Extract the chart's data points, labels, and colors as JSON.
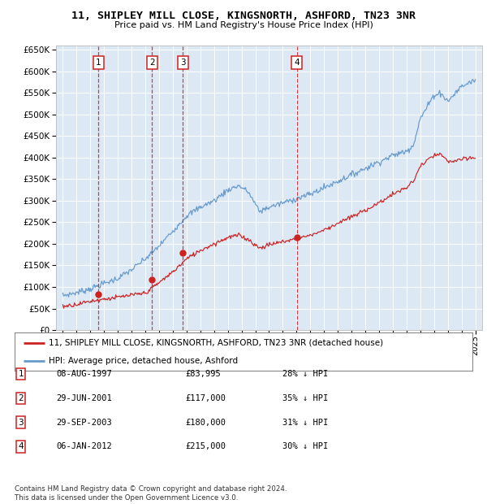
{
  "title": "11, SHIPLEY MILL CLOSE, KINGSNORTH, ASHFORD, TN23 3NR",
  "subtitle": "Price paid vs. HM Land Registry's House Price Index (HPI)",
  "bg_color": "#dce9f5",
  "grid_color": "#ffffff",
  "hpi_color": "#6699cc",
  "price_color": "#cc2222",
  "ylim": [
    0,
    660000
  ],
  "yticks": [
    0,
    50000,
    100000,
    150000,
    200000,
    250000,
    300000,
    350000,
    400000,
    450000,
    500000,
    550000,
    600000,
    650000
  ],
  "sales": [
    {
      "date": 1997.6,
      "price": 83995,
      "label": "1"
    },
    {
      "date": 2001.49,
      "price": 117000,
      "label": "2"
    },
    {
      "date": 2003.74,
      "price": 180000,
      "label": "3"
    },
    {
      "date": 2012.02,
      "price": 215000,
      "label": "4"
    }
  ],
  "legend_entries": [
    {
      "label": "11, SHIPLEY MILL CLOSE, KINGSNORTH, ASHFORD, TN23 3NR (detached house)",
      "color": "#cc2222"
    },
    {
      "label": "HPI: Average price, detached house, Ashford",
      "color": "#6699cc"
    }
  ],
  "table_rows": [
    {
      "num": "1",
      "date": "08-AUG-1997",
      "price": "£83,995",
      "pct": "28% ↓ HPI"
    },
    {
      "num": "2",
      "date": "29-JUN-2001",
      "price": "£117,000",
      "pct": "35% ↓ HPI"
    },
    {
      "num": "3",
      "date": "29-SEP-2003",
      "price": "£180,000",
      "pct": "31% ↓ HPI"
    },
    {
      "num": "4",
      "date": "06-JAN-2012",
      "price": "£215,000",
      "pct": "30% ↓ HPI"
    }
  ],
  "footer": "Contains HM Land Registry data © Crown copyright and database right 2024.\nThis data is licensed under the Open Government Licence v3.0.",
  "xlim_start": 1994.5,
  "xlim_end": 2025.5
}
